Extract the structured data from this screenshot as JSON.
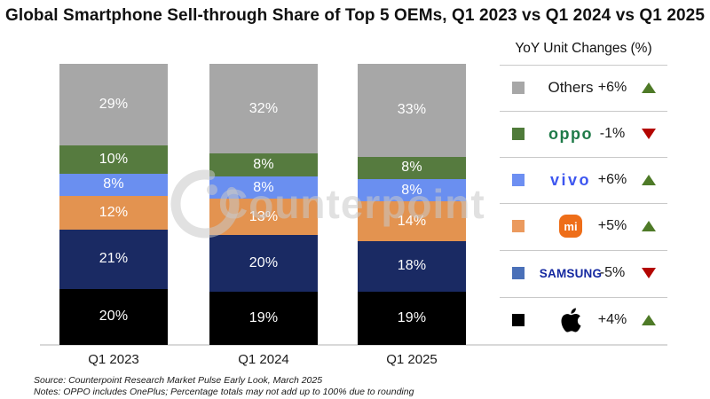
{
  "title": "Global Smartphone Sell-through Share of Top 5 OEMs, Q1 2023 vs Q1 2024 vs Q1 2025",
  "watermark": "Counterpoint",
  "chart_data": {
    "type": "bar",
    "stacked": true,
    "title": "Global Smartphone Sell-through Share of Top 5 OEMs, Q1 2023 vs Q1 2024 vs Q1 2025",
    "categories": [
      "Q1 2023",
      "Q1 2024",
      "Q1 2025"
    ],
    "unit": "%",
    "ylim": [
      0,
      100
    ],
    "grid": false,
    "legend_position": "right",
    "series": [
      {
        "name": "Apple",
        "color": "#000000",
        "values": [
          20,
          19,
          19
        ]
      },
      {
        "name": "Samsung",
        "color": "#1a2a63",
        "values": [
          21,
          20,
          18
        ]
      },
      {
        "name": "Xiaomi",
        "color": "#e39350",
        "values": [
          12,
          13,
          14
        ]
      },
      {
        "name": "vivo",
        "color": "#6a8ff0",
        "values": [
          8,
          8,
          8
        ]
      },
      {
        "name": "OPPO",
        "color": "#567b3f",
        "values": [
          10,
          8,
          8
        ]
      },
      {
        "name": "Others",
        "color": "#a7a7a7",
        "values": [
          29,
          32,
          33
        ]
      }
    ]
  },
  "legend": {
    "header": "YoY Unit Changes (%)",
    "items": [
      {
        "name": "Others",
        "change": "+6%",
        "direction": "up",
        "swatch": "#a7a7a7"
      },
      {
        "name": "OPPO",
        "change": "-1%",
        "direction": "down",
        "swatch": "#4f7b3a"
      },
      {
        "name": "vivo",
        "change": "+6%",
        "direction": "up",
        "swatch": "#6d8ff2"
      },
      {
        "name": "Xiaomi",
        "logo_text": "mi",
        "change": "+5%",
        "direction": "up",
        "swatch": "#eb9a5e"
      },
      {
        "name": "SAMSUNG",
        "change": "-5%",
        "direction": "down",
        "swatch": "#4a70b8"
      },
      {
        "name": "Apple",
        "change": "+4%",
        "direction": "up",
        "swatch": "#000000"
      }
    ]
  },
  "notes": {
    "source": "Source: Counterpoint Research Market Pulse Early Look, March 2025",
    "notes": "Notes: OPPO includes OnePlus; Percentage totals may not add up to 100% due to rounding"
  }
}
